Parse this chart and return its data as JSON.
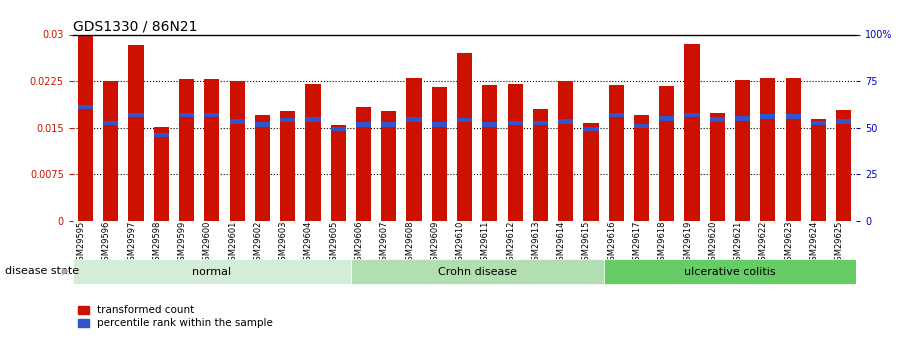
{
  "title": "GDS1330 / 86N21",
  "samples": [
    "GSM29595",
    "GSM29596",
    "GSM29597",
    "GSM29598",
    "GSM29599",
    "GSM29600",
    "GSM29601",
    "GSM29602",
    "GSM29603",
    "GSM29604",
    "GSM29605",
    "GSM29606",
    "GSM29607",
    "GSM29608",
    "GSM29609",
    "GSM29610",
    "GSM29611",
    "GSM29612",
    "GSM29613",
    "GSM29614",
    "GSM29615",
    "GSM29616",
    "GSM29617",
    "GSM29618",
    "GSM29619",
    "GSM29620",
    "GSM29621",
    "GSM29622",
    "GSM29623",
    "GSM29624",
    "GSM29625"
  ],
  "red_values": [
    0.0299,
    0.0225,
    0.0283,
    0.0151,
    0.0229,
    0.0229,
    0.0225,
    0.017,
    0.0177,
    0.022,
    0.0155,
    0.0183,
    0.0177,
    0.023,
    0.0215,
    0.027,
    0.0219,
    0.022,
    0.018,
    0.0225,
    0.0158,
    0.0218,
    0.017,
    0.0217,
    0.0285,
    0.0174,
    0.0226,
    0.023,
    0.023,
    0.0164,
    0.0178
  ],
  "blue_values": [
    0.0183,
    0.0158,
    0.017,
    0.0138,
    0.017,
    0.017,
    0.016,
    0.0155,
    0.0162,
    0.0163,
    0.0148,
    0.0155,
    0.0155,
    0.0163,
    0.0155,
    0.0162,
    0.0155,
    0.0158,
    0.0158,
    0.016,
    0.0148,
    0.017,
    0.0153,
    0.0165,
    0.017,
    0.0163,
    0.0165,
    0.0168,
    0.0168,
    0.0158,
    0.016
  ],
  "groups": [
    {
      "label": "normal",
      "start": 0,
      "end": 10,
      "color": "#d4edda"
    },
    {
      "label": "Crohn disease",
      "start": 11,
      "end": 20,
      "color": "#b2dfb2"
    },
    {
      "label": "ulcerative colitis",
      "start": 21,
      "end": 30,
      "color": "#66cc66"
    }
  ],
  "ylim_left": [
    0,
    0.03
  ],
  "ylim_right": [
    0,
    100
  ],
  "yticks_left": [
    0,
    0.0075,
    0.015,
    0.0225,
    0.03
  ],
  "ytick_left_labels": [
    "0",
    "0.0075",
    "0.015",
    "0.0225",
    "0.03"
  ],
  "yticks_right": [
    0,
    25,
    50,
    75,
    100
  ],
  "ytick_right_labels": [
    "0",
    "25",
    "50",
    "75",
    "100%"
  ],
  "bar_color": "#cc1100",
  "blue_color": "#3355cc",
  "bar_width": 0.6,
  "background_color": "#ffffff",
  "title_fontsize": 10,
  "tick_fontsize": 7,
  "label_fontsize": 8,
  "grid_lines": [
    0.0075,
    0.015,
    0.0225
  ]
}
